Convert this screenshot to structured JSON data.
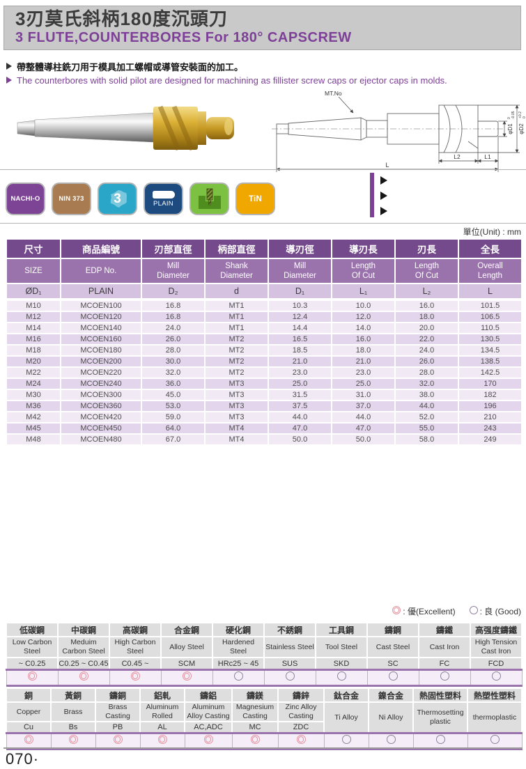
{
  "colors": {
    "accent": "#7d3f98",
    "header_gray": "#c9c9c9",
    "table_dark": "#744a8c",
    "table_mid": "#9a73ad",
    "table_light": "#d5c2e0",
    "row_light": "#f1eaf5",
    "row_dark": "#e3d5ec",
    "excellent": "#e6929e",
    "good": "#8f819b",
    "badge_border": "#b3b3b3"
  },
  "header": {
    "title_zh": "3刃莫氏斜柄180度沉頭刀",
    "title_en": "3 FLUTE,COUNTERBORES For 180° CAPSCREW"
  },
  "intro": {
    "line_zh": "帶整體導柱銑刀用于模具加工螺帽或導管安裝面的加工。",
    "line_en": "The counterbores with solid pilot are designed for machining as fillister screw caps or ejector caps in molds."
  },
  "drawing": {
    "mt_label": "MT.No",
    "d1_label": "φD1",
    "d1_tol_top": "0",
    "d1_tol_bottom": "-0.05",
    "d2_label": "φD2",
    "d2_tol_top": "+0.2",
    "d2_tol_bottom": "0",
    "l1_label": "L1",
    "l2_label": "L2",
    "l_label": "L"
  },
  "badges": [
    {
      "name": "nachi-o",
      "label": "NACHI-O",
      "color": "#7d4394"
    },
    {
      "name": "nin-373",
      "label": "NIN 373",
      "color": "#a87c50"
    },
    {
      "name": "flute-count",
      "label": "3",
      "color": "#2aa6c9",
      "icon": "flute-cross-section"
    },
    {
      "name": "plain-shank",
      "label": "PLAIN",
      "color": "#1d4b80",
      "icon": "plain-shank"
    },
    {
      "name": "counterbore-application",
      "label": "",
      "color": "#7cc142",
      "icon": "counterbore-pocket"
    },
    {
      "name": "tin-coating",
      "label": "TiN",
      "color": "#f0a800"
    }
  ],
  "unit_label": "單位(Unit) : mm",
  "spec_table": {
    "columns": [
      {
        "zh": "尺寸",
        "en": "SIZE",
        "sym": "ØD₁"
      },
      {
        "zh": "商品編號",
        "en": "EDP No.",
        "sym": "PLAIN"
      },
      {
        "zh": "刃部直徑",
        "en": "Mill\nDiameter",
        "sym": "D₂"
      },
      {
        "zh": "柄部直徑",
        "en": "Shank\nDiameter",
        "sym": "d"
      },
      {
        "zh": "導刃徑",
        "en": "Mill\nDiameter",
        "sym": "D₁"
      },
      {
        "zh": "導刃長",
        "en": "Length\nOf Cut",
        "sym": "L₁"
      },
      {
        "zh": "刃長",
        "en": "Length\nOf Cut",
        "sym": "L₂"
      },
      {
        "zh": "全長",
        "en": "Overall\nLength",
        "sym": "L"
      }
    ],
    "rows": [
      [
        "M10",
        "MCOEN100",
        "16.8",
        "MT1",
        "10.3",
        "10.0",
        "16.0",
        "101.5"
      ],
      [
        "M12",
        "MCOEN120",
        "16.8",
        "MT1",
        "12.4",
        "12.0",
        "18.0",
        "106.5"
      ],
      [
        "M14",
        "MCOEN140",
        "24.0",
        "MT1",
        "14.4",
        "14.0",
        "20.0",
        "110.5"
      ],
      [
        "M16",
        "MCOEN160",
        "26.0",
        "MT2",
        "16.5",
        "16.0",
        "22.0",
        "130.5"
      ],
      [
        "M18",
        "MCOEN180",
        "28.0",
        "MT2",
        "18.5",
        "18.0",
        "24.0",
        "134.5"
      ],
      [
        "M20",
        "MCOEN200",
        "30.0",
        "MT2",
        "21.0",
        "21.0",
        "26.0",
        "138.5"
      ],
      [
        "M22",
        "MCOEN220",
        "32.0",
        "MT2",
        "23.0",
        "23.0",
        "28.0",
        "142.5"
      ],
      [
        "M24",
        "MCOEN240",
        "36.0",
        "MT3",
        "25.0",
        "25.0",
        "32.0",
        "170"
      ],
      [
        "M30",
        "MCOEN300",
        "45.0",
        "MT3",
        "31.5",
        "31.0",
        "38.0",
        "182"
      ],
      [
        "M36",
        "MCOEN360",
        "53.0",
        "MT3",
        "37.5",
        "37.0",
        "44.0",
        "196"
      ],
      [
        "M42",
        "MCOEN420",
        "59.0",
        "MT3",
        "44.0",
        "44.0",
        "52.0",
        "210"
      ],
      [
        "M45",
        "MCOEN450",
        "64.0",
        "MT4",
        "47.0",
        "47.0",
        "55.0",
        "243"
      ],
      [
        "M48",
        "MCOEN480",
        "67.0",
        "MT4",
        "50.0",
        "50.0",
        "58.0",
        "249"
      ]
    ]
  },
  "legend": {
    "excellent_label": ": 優(Excellent)",
    "good_label": ": 良 (Good)"
  },
  "materials_1": {
    "columns": [
      {
        "zh": "低碳鋼",
        "en": "Low Carbon Steel",
        "code": "~ C0.25",
        "rating": "excellent"
      },
      {
        "zh": "中碳鋼",
        "en": "Meduim Carbon Steel",
        "code": "C0.25 ~ C0.45",
        "rating": "excellent"
      },
      {
        "zh": "高碳鋼",
        "en": "High Carbon Steel",
        "code": "C0.45 ~",
        "rating": "excellent"
      },
      {
        "zh": "合金鋼",
        "en": "Alloy Steel",
        "code": "SCM",
        "rating": "excellent"
      },
      {
        "zh": "硬化鋼",
        "en": "Hardened Steel",
        "code": "HRc25 ~ 45",
        "rating": "good"
      },
      {
        "zh": "不銹鋼",
        "en": "Stainless Steel",
        "code": "SUS",
        "rating": "good"
      },
      {
        "zh": "工具鋼",
        "en": "Tool Steel",
        "code": "SKD",
        "rating": "good"
      },
      {
        "zh": "鑄鋼",
        "en": "Cast Steel",
        "code": "SC",
        "rating": "good"
      },
      {
        "zh": "鑄鐵",
        "en": "Cast Iron",
        "code": "FC",
        "rating": "good"
      },
      {
        "zh": "高强度鑄鐵",
        "en": "High Tension Cast Iron",
        "code": "FCD",
        "rating": "good"
      }
    ]
  },
  "materials_2": {
    "columns": [
      {
        "zh": "銅",
        "en": "Copper",
        "code": "Cu",
        "rating": "excellent"
      },
      {
        "zh": "黃銅",
        "en": "Brass",
        "code": "Bs",
        "rating": "excellent"
      },
      {
        "zh": "鑄銅",
        "en": "Brass Casting",
        "code": "PB",
        "rating": "excellent"
      },
      {
        "zh": "鋁軋",
        "en": "Aluminum Rolled",
        "code": "AL",
        "rating": "excellent"
      },
      {
        "zh": "鑄鋁",
        "en": "Aluminum Alloy Casting",
        "code": "AC,ADC",
        "rating": "excellent"
      },
      {
        "zh": "鑄鎂",
        "en": "Magnesium Casting",
        "code": "MC",
        "rating": "excellent"
      },
      {
        "zh": "鑄鋅",
        "en": "Zinc Alloy Casting",
        "code": "ZDC",
        "rating": "excellent"
      },
      {
        "zh": "鈦合金",
        "en": "Ti Alloy",
        "code": null,
        "rating": "good"
      },
      {
        "zh": "鎳合金",
        "en": "Ni Alloy",
        "code": null,
        "rating": "good"
      },
      {
        "zh": "熱固性塑料",
        "en": "Thermosetting plastic",
        "code": null,
        "rating": "good"
      },
      {
        "zh": "熱塑性塑料",
        "en": "thermoplastic",
        "code": null,
        "rating": "good"
      }
    ]
  },
  "footer": {
    "page_number": "070·"
  }
}
